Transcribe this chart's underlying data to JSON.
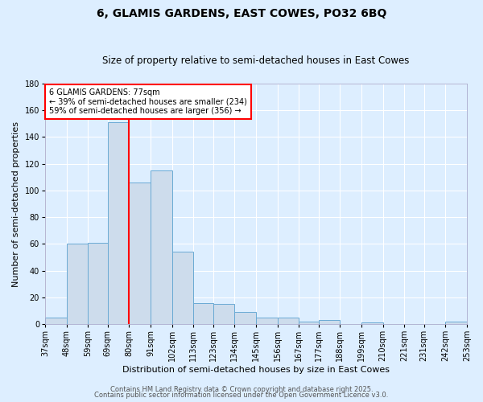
{
  "title": "6, GLAMIS GARDENS, EAST COWES, PO32 6BQ",
  "subtitle": "Size of property relative to semi-detached houses in East Cowes",
  "xlabel": "Distribution of semi-detached houses by size in East Cowes",
  "ylabel": "Number of semi-detached properties",
  "bar_color": "#cddcec",
  "bar_edge_color": "#6aaad4",
  "background_color": "#ddeeff",
  "grid_color": "#ffffff",
  "vline_value": 80,
  "vline_color": "red",
  "annotation_text": "6 GLAMIS GARDENS: 77sqm\n← 39% of semi-detached houses are smaller (234)\n59% of semi-detached houses are larger (356) →",
  "annotation_box_color": "white",
  "annotation_box_edge": "red",
  "bin_edges": [
    37,
    48,
    59,
    69,
    80,
    91,
    102,
    113,
    123,
    134,
    145,
    156,
    167,
    177,
    188,
    199,
    210,
    221,
    231,
    242,
    253
  ],
  "bin_labels": [
    "37sqm",
    "48sqm",
    "59sqm",
    "69sqm",
    "80sqm",
    "91sqm",
    "102sqm",
    "113sqm",
    "123sqm",
    "134sqm",
    "145sqm",
    "156sqm",
    "167sqm",
    "177sqm",
    "188sqm",
    "199sqm",
    "210sqm",
    "221sqm",
    "231sqm",
    "242sqm",
    "253sqm"
  ],
  "counts": [
    5,
    60,
    61,
    151,
    106,
    115,
    54,
    16,
    15,
    9,
    5,
    5,
    2,
    3,
    0,
    1,
    0,
    0,
    0,
    2
  ],
  "ylim": [
    0,
    180
  ],
  "yticks": [
    0,
    20,
    40,
    60,
    80,
    100,
    120,
    140,
    160,
    180
  ],
  "footer1": "Contains HM Land Registry data © Crown copyright and database right 2025.",
  "footer2": "Contains public sector information licensed under the Open Government Licence v3.0.",
  "title_fontsize": 10,
  "subtitle_fontsize": 8.5,
  "label_fontsize": 8,
  "tick_fontsize": 7,
  "footer_fontsize": 6,
  "annotation_fontsize": 7
}
